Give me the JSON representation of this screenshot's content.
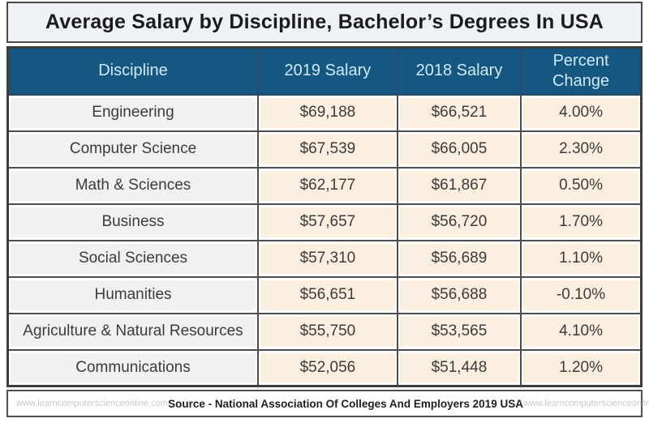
{
  "title": "Average Salary by Discipline, Bachelor’s Degrees In USA",
  "table": {
    "columns": [
      "Discipline",
      "2019 Salary",
      "2018 Salary",
      "Percent Change"
    ],
    "rows": [
      {
        "discipline": "Engineering",
        "salary_2019": "$69,188",
        "salary_2018": "$66,521",
        "percent_change": "4.00%",
        "highlight": false
      },
      {
        "discipline": "Computer Science",
        "salary_2019": "$67,539",
        "salary_2018": "$66,005",
        "percent_change": "2.30%",
        "highlight": true
      },
      {
        "discipline": "Math & Sciences",
        "salary_2019": "$62,177",
        "salary_2018": "$61,867",
        "percent_change": "0.50%",
        "highlight": false
      },
      {
        "discipline": "Business",
        "salary_2019": "$57,657",
        "salary_2018": "$56,720",
        "percent_change": "1.70%",
        "highlight": false
      },
      {
        "discipline": "Social Sciences",
        "salary_2019": "$57,310",
        "salary_2018": "$56,689",
        "percent_change": "1.10%",
        "highlight": false
      },
      {
        "discipline": "Humanities",
        "salary_2019": "$56,651",
        "salary_2018": "$56,688",
        "percent_change": "-0.10%",
        "highlight": false
      },
      {
        "discipline": "Agriculture & Natural Resources",
        "salary_2019": "$55,750",
        "salary_2018": "$53,565",
        "percent_change": "4.10%",
        "highlight": false
      },
      {
        "discipline": "Communications",
        "salary_2019": "$52,056",
        "salary_2018": "$51,448",
        "percent_change": "1.20%",
        "highlight": false
      }
    ]
  },
  "footer": {
    "source": "Source - National Association Of Colleges And Employers 2019  USA",
    "watermark_left": "www.learncomputerscienceonline.com",
    "watermark_right": "www.learncomputerscienceonline.com"
  },
  "colors": {
    "header_bg": "#155780",
    "header_text": "#cfe9fa",
    "discipline_cell_bg": "#f1f1f2",
    "salary_cell_bg": "#fcefe0",
    "highlight_text": "#b5413f",
    "grid_border": "#4d4d4d"
  },
  "chart_data": {
    "type": "table",
    "title": "Average Salary by Discipline, Bachelor’s Degrees In USA",
    "columns": [
      "Discipline",
      "2019 Salary",
      "2018 Salary",
      "Percent Change"
    ],
    "rows": [
      [
        "Engineering",
        69188,
        66521,
        4.0
      ],
      [
        "Computer Science",
        67539,
        66005,
        2.3
      ],
      [
        "Math & Sciences",
        62177,
        61867,
        0.5
      ],
      [
        "Business",
        57657,
        56720,
        1.7
      ],
      [
        "Social Sciences",
        57310,
        56689,
        1.1
      ],
      [
        "Humanities",
        56651,
        56688,
        -0.1
      ],
      [
        "Agriculture & Natural Resources",
        55750,
        53565,
        4.1
      ],
      [
        "Communications",
        52056,
        51448,
        1.2
      ]
    ],
    "source": "National Association Of Colleges And Employers 2019 USA",
    "highlighted_row": "Computer Science"
  }
}
